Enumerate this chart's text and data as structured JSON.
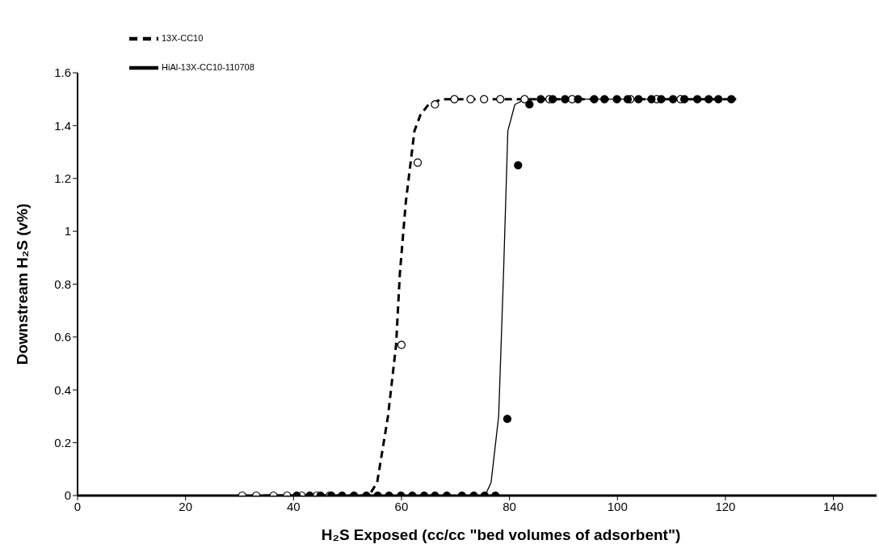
{
  "chart_data": {
    "type": "scatter",
    "xlabel": "H₂S Exposed (cc/cc \"bed volumes of adsorbent\")",
    "ylabel": "Downstream  H₂S (v%)",
    "xlim": [
      0,
      148
    ],
    "xticks": [
      0,
      20,
      40,
      60,
      80,
      100,
      120,
      140
    ],
    "ylim": [
      0,
      1.6
    ],
    "yticks": [
      0,
      0.2,
      0.4,
      0.6,
      0.8,
      1,
      1.2,
      1.4,
      1.6
    ],
    "grid": false,
    "legend": "top left",
    "series": [
      {
        "name": "13X-CC10",
        "type": "line",
        "color": "#000000",
        "marker": "none",
        "line_style": "dashed",
        "x": [
          30,
          54,
          55.5,
          57.5,
          59,
          59.7,
          60.8,
          62.4,
          63.5,
          65,
          67.5,
          122
        ],
        "values": [
          0,
          0,
          0.05,
          0.3,
          0.57,
          0.84,
          1.11,
          1.38,
          1.44,
          1.48,
          1.5,
          1.5
        ]
      },
      {
        "name": "HiAl-13X-CC10-110708",
        "type": "line",
        "color": "#000000",
        "marker": "none",
        "line_style": "solid",
        "x": [
          40,
          75.5,
          76.6,
          78,
          78.9,
          79.7,
          81,
          83,
          121
        ],
        "values": [
          0,
          0,
          0.05,
          0.3,
          0.84,
          1.38,
          1.48,
          1.5,
          1.5
        ]
      },
      {
        "color": "#ffffff",
        "marker": "circle",
        "x": [
          30.5,
          33.1,
          36.3,
          38.8,
          41.5,
          44.3,
          46.7,
          60,
          63,
          66.2,
          69.8,
          72.8,
          75.3,
          78.3,
          82.8,
          87.4,
          91.6,
          102.4,
          107.3,
          111.7
        ],
        "values": [
          0,
          0,
          0,
          0,
          0,
          0,
          0,
          0.57,
          1.26,
          1.48,
          1.5,
          1.5,
          1.5,
          1.5,
          1.5,
          1.5,
          1.5,
          1.5,
          1.5,
          1.5
        ]
      },
      {
        "color": "#000000",
        "marker": "circle",
        "x": [
          40.6,
          43,
          45,
          47,
          49,
          51.2,
          53.5,
          55.6,
          57.7,
          59.9,
          62,
          64.2,
          66.2,
          68.4,
          71.2,
          73.4,
          75.4,
          77.4,
          79.6,
          81.6,
          83.7,
          85.8,
          88,
          90.3,
          92.7,
          95.7,
          97.6,
          99.9,
          101.9,
          103.9,
          106.3,
          108.1,
          110.3,
          112.4,
          114.8,
          116.9,
          118.7,
          121.1
        ],
        "values": [
          0,
          0,
          0,
          0,
          0,
          0,
          0,
          0,
          0,
          0,
          0,
          0,
          0,
          0,
          0,
          0,
          0,
          0,
          0.29,
          1.25,
          1.48,
          1.5,
          1.5,
          1.5,
          1.5,
          1.5,
          1.5,
          1.5,
          1.5,
          1.5,
          1.5,
          1.5,
          1.5,
          1.5,
          1.5,
          1.5,
          1.5,
          1.5
        ]
      }
    ]
  }
}
